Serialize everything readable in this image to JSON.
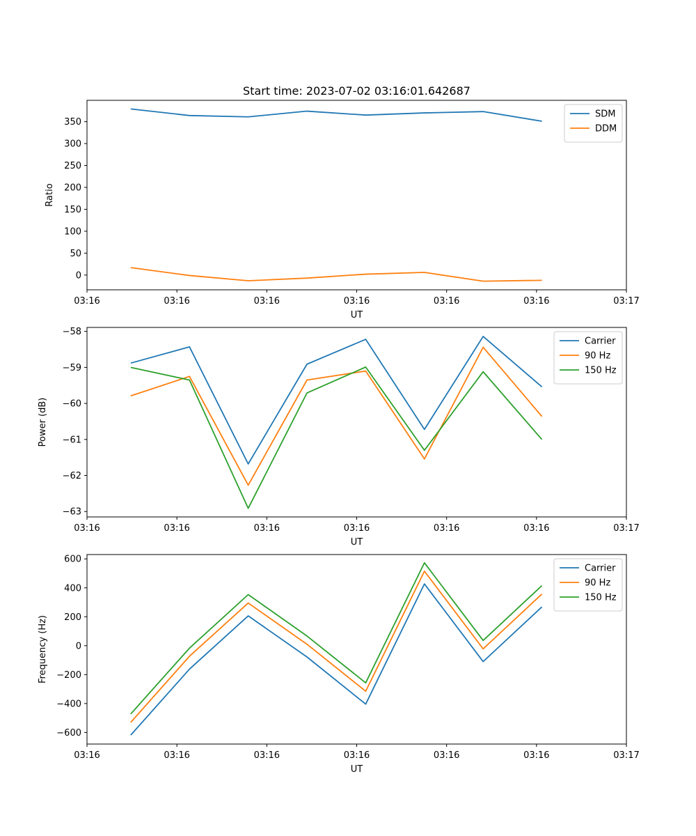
{
  "chart_data": [
    {
      "type": "line",
      "title": "Start time: 2023-07-02 03:16:01.642687",
      "xlabel": "UT",
      "ylabel": "Ratio",
      "xlim": [
        0,
        9
      ],
      "x_tick_positions": [
        0,
        1.5,
        3,
        4.5,
        6,
        7.5,
        9
      ],
      "x_tick_labels": [
        "03:16",
        "03:16",
        "03:16",
        "03:16",
        "03:16",
        "03:16",
        "03:17"
      ],
      "ylim": [
        -33.7,
        398.7
      ],
      "y_ticks": [
        0,
        50,
        100,
        150,
        200,
        250,
        300,
        350
      ],
      "y_tick_labels": [
        "0",
        "50",
        "100",
        "150",
        "200",
        "250",
        "300",
        "350"
      ],
      "x": [
        0.73,
        1.71,
        2.69,
        3.67,
        4.65,
        5.63,
        6.61,
        7.59
      ],
      "series": [
        {
          "name": "SDM",
          "color": "#1f77b4",
          "values": [
            379,
            364,
            361,
            374,
            365,
            370,
            373,
            351
          ]
        },
        {
          "name": "DDM",
          "color": "#ff7f0e",
          "values": [
            17,
            -1,
            -13,
            -7,
            2,
            6,
            -14,
            -12
          ]
        }
      ],
      "legend": "top-right"
    },
    {
      "type": "line",
      "title": "",
      "xlabel": "UT",
      "ylabel": "Power (dB)",
      "xlim": [
        0,
        9
      ],
      "x_tick_positions": [
        0,
        1.5,
        3,
        4.5,
        6,
        7.5,
        9
      ],
      "x_tick_labels": [
        "03:16",
        "03:16",
        "03:16",
        "03:16",
        "03:16",
        "03:16",
        "03:17"
      ],
      "ylim": [
        -63.15,
        -57.89
      ],
      "y_ticks": [
        -63,
        -62,
        -61,
        -60,
        -59,
        -58
      ],
      "y_tick_labels": [
        "−63",
        "−62",
        "−61",
        "−60",
        "−59",
        "−58"
      ],
      "x": [
        0.73,
        1.71,
        2.69,
        3.67,
        4.65,
        5.63,
        6.61,
        7.59
      ],
      "series": [
        {
          "name": "Carrier",
          "color": "#1f77b4",
          "values": [
            -58.88,
            -58.43,
            -61.68,
            -58.91,
            -58.22,
            -60.72,
            -58.14,
            -59.54
          ]
        },
        {
          "name": "90 Hz",
          "color": "#ff7f0e",
          "values": [
            -59.79,
            -59.25,
            -62.27,
            -59.35,
            -59.1,
            -61.54,
            -58.44,
            -60.36
          ]
        },
        {
          "name": "150 Hz",
          "color": "#2ca02c",
          "values": [
            -59.0,
            -59.35,
            -62.91,
            -59.71,
            -58.99,
            -61.3,
            -59.12,
            -61.0
          ]
        }
      ],
      "legend": "top-right"
    },
    {
      "type": "line",
      "title": "",
      "xlabel": "UT",
      "ylabel": "Frequency (Hz)",
      "xlim": [
        0,
        9
      ],
      "x_tick_positions": [
        0,
        1.5,
        3,
        4.5,
        6,
        7.5,
        9
      ],
      "x_tick_labels": [
        "03:16",
        "03:16",
        "03:16",
        "03:16",
        "03:16",
        "03:16",
        "03:17"
      ],
      "ylim": [
        -680,
        630
      ],
      "y_ticks": [
        -600,
        -400,
        -200,
        0,
        200,
        400,
        600
      ],
      "y_tick_labels": [
        "−600",
        "−400",
        "−200",
        "0",
        "200",
        "400",
        "600"
      ],
      "x": [
        0.73,
        1.71,
        2.69,
        3.67,
        4.65,
        5.63,
        6.61,
        7.59
      ],
      "series": [
        {
          "name": "Carrier",
          "color": "#1f77b4",
          "values": [
            -618,
            -162,
            206,
            -78,
            -404,
            427,
            -110,
            268
          ]
        },
        {
          "name": "90 Hz",
          "color": "#ff7f0e",
          "values": [
            -530,
            -73,
            295,
            10,
            -315,
            515,
            -22,
            357
          ]
        },
        {
          "name": "150 Hz",
          "color": "#2ca02c",
          "values": [
            -472,
            -17,
            353,
            67,
            -257,
            573,
            36,
            415
          ]
        }
      ],
      "legend": "top-right"
    }
  ]
}
